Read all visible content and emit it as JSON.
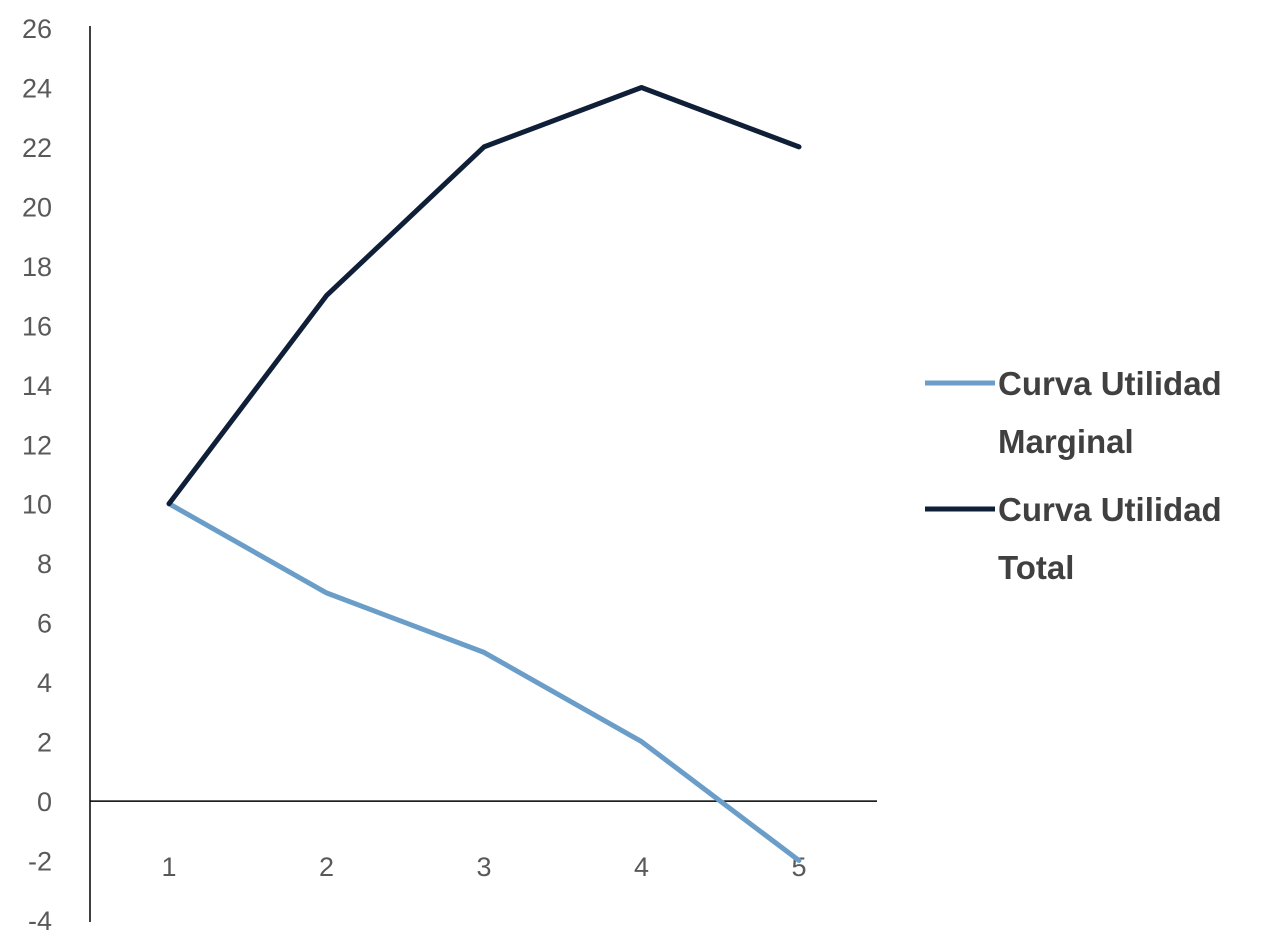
{
  "chart_data": {
    "type": "line",
    "categories": [
      "1",
      "2",
      "3",
      "4",
      "5"
    ],
    "series": [
      {
        "name": "Curva Utilidad Marginal",
        "name_lines": [
          "Curva Utilidad",
          "Marginal"
        ],
        "color": "#6a9ec9",
        "values": [
          10,
          7,
          5,
          2,
          -2
        ]
      },
      {
        "name": "Curva Utilidad Total",
        "name_lines": [
          "Curva Utilidad",
          "Total"
        ],
        "color": "#0f1f38",
        "values": [
          10,
          17,
          22,
          24,
          22
        ]
      }
    ],
    "ylim": [
      -4,
      26
    ],
    "ystep": 2,
    "yticks": [
      "26",
      "24",
      "22",
      "20",
      "18",
      "16",
      "14",
      "12",
      "10",
      "8",
      "6",
      "4",
      "2",
      "0",
      "-2",
      "-4"
    ],
    "title": "",
    "xlabel": "",
    "ylabel": "",
    "grid": false,
    "legend_position": "right",
    "axis_color": "#000000"
  }
}
